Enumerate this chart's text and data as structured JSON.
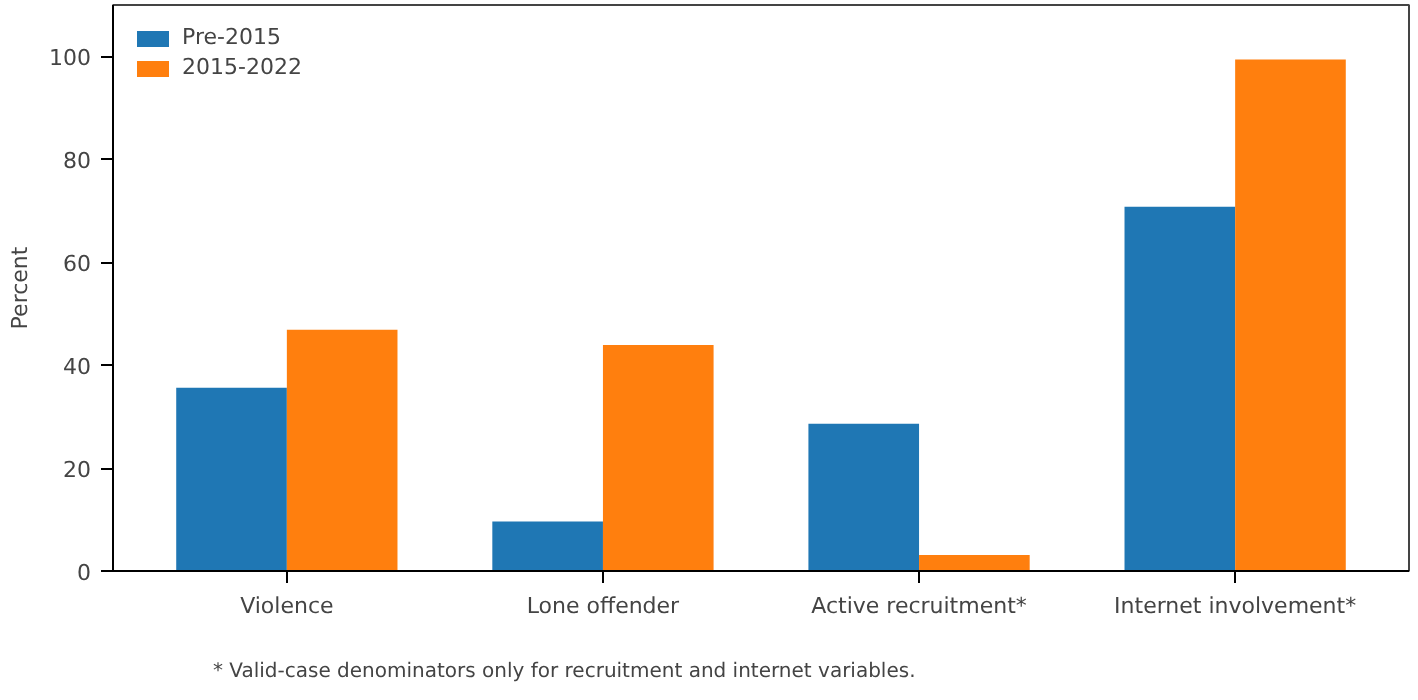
{
  "chart_data": {
    "type": "bar",
    "ylabel": "Percent",
    "categories": [
      "Violence",
      "Lone offender",
      "Active recruitment*",
      "Internet involvement*"
    ],
    "series": [
      {
        "name": "Pre-2015",
        "color": "#1f77b4",
        "values": [
          35.6,
          9.6,
          28.6,
          70.8
        ]
      },
      {
        "name": "2015-2022",
        "color": "#ff7f0e",
        "values": [
          46.9,
          43.9,
          3.1,
          99.4
        ]
      }
    ],
    "ylim": [
      0,
      110
    ],
    "yticks": [
      0,
      20,
      40,
      60,
      80,
      100
    ],
    "grid": false,
    "legend": "top left",
    "annotations": [
      "* Valid-case denominators only for recruitment and internet variables."
    ]
  }
}
